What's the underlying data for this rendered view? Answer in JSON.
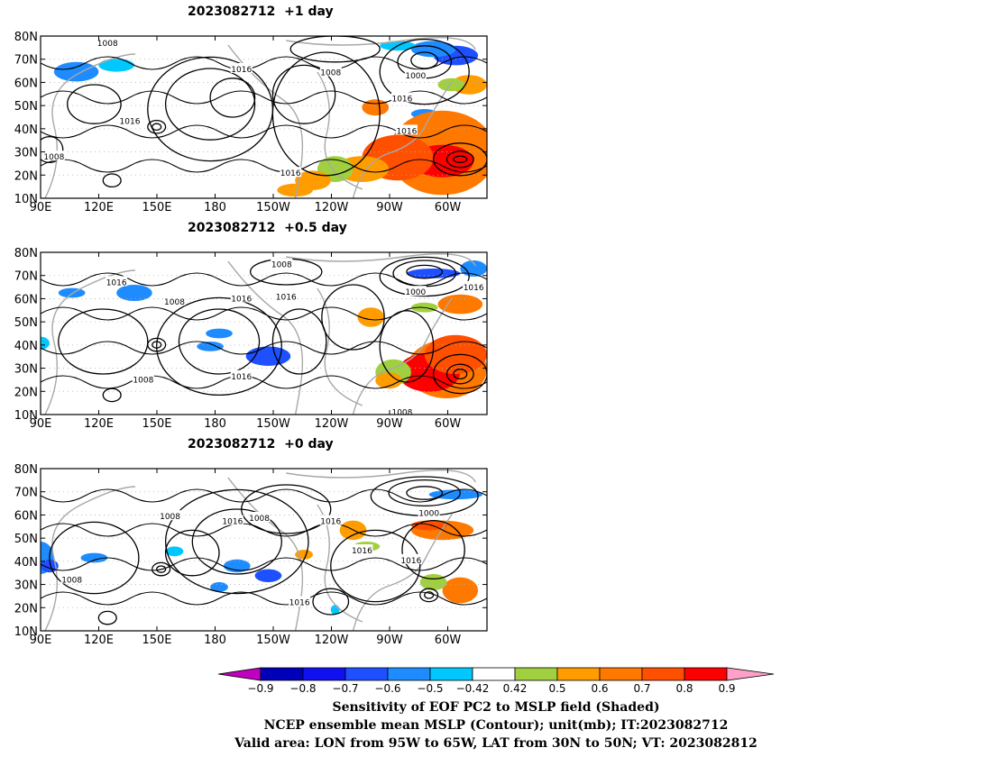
{
  "panels": [
    {
      "title": "2023082712  +1 day",
      "contour_labels": [
        "1008",
        "1008",
        "1016",
        "1016",
        "1016",
        "1000",
        "1016",
        "1016",
        "1008"
      ]
    },
    {
      "title": "2023082712  +0.5 day",
      "contour_labels": [
        "1008",
        "1016",
        "1008",
        "1016",
        "1016",
        "1000",
        "1016",
        "1016",
        "1008",
        "1008"
      ]
    },
    {
      "title": "2023082712  +0 day",
      "contour_labels": [
        "1008",
        "1016",
        "1008",
        "1016",
        "1000",
        "1016",
        "1016",
        "1016",
        "1008"
      ]
    }
  ],
  "map": {
    "lat_labels": [
      "80N",
      "70N",
      "60N",
      "50N",
      "40N",
      "30N",
      "20N",
      "10N"
    ],
    "lon_labels": [
      "90E",
      "120E",
      "150E",
      "180",
      "150W",
      "120W",
      "90W",
      "60W"
    ]
  },
  "colorbar": {
    "tick_labels": [
      "−0.9",
      "−0.8",
      "−0.7",
      "−0.6",
      "−0.5",
      "−0.42",
      "0.42",
      "0.5",
      "0.6",
      "0.7",
      "0.8",
      "0.9"
    ],
    "colors": [
      "#c000c0",
      "#0000b8",
      "#1010f0",
      "#1e50ff",
      "#1e8cff",
      "#00c8ff",
      "#ffffff",
      "#a0d040",
      "#ff9c00",
      "#ff7800",
      "#ff5000",
      "#ff0000",
      "#ffa0c8"
    ]
  },
  "captions": [
    "Sensitivity of EOF PC2 to MSLP field (Shaded)",
    "NCEP ensemble mean MSLP (Contour); unit(mb); IT:2023082712",
    "Valid area: LON from 95W to 65W, LAT from 30N to 50N; VT: 2023082812"
  ]
}
